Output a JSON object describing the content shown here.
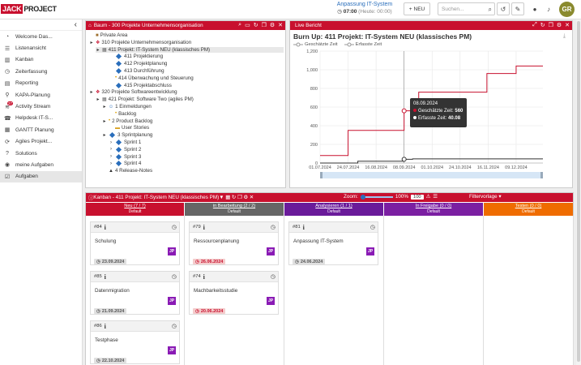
{
  "logo": {
    "part1": "JACK",
    "part2": "PROJECT"
  },
  "header": {
    "project_link": "Anpassung IT-System",
    "time_value": "07:00",
    "time_today": "(Heute: 00:00)",
    "new_label": "NEU",
    "search_placeholder": "Suchen...",
    "avatar_initials": "GR"
  },
  "sidebar": {
    "items": [
      {
        "label": "Welcome Das...",
        "icon": "dashboard-icon"
      },
      {
        "label": "Listenansicht",
        "icon": "list-icon"
      },
      {
        "label": "Kanban",
        "icon": "kanban-icon"
      },
      {
        "label": "Zeiterfassung",
        "icon": "clock-icon"
      },
      {
        "label": "Reporting",
        "icon": "chart-icon"
      },
      {
        "label": "KAPA-Planung",
        "icon": "pin-icon"
      },
      {
        "label": "Activity Stream",
        "icon": "stream-icon",
        "badge": "27"
      },
      {
        "label": "Helpdesk IT-S...",
        "icon": "helpdesk-icon"
      },
      {
        "label": "GANTT Planung",
        "icon": "gantt-icon"
      },
      {
        "label": "Agiles Projekt...",
        "icon": "agile-icon"
      },
      {
        "label": "Solutions",
        "icon": "question-icon"
      },
      {
        "label": "meine Aufgaben",
        "icon": "eye-icon"
      },
      {
        "label": "Aufgaben",
        "icon": "tasks-icon"
      }
    ]
  },
  "tree_panel": {
    "title": "Baum - 300 Projekte Unternehmensorganisation",
    "rows": [
      "Private Area",
      "310 Projekte Unternehmensorganisation",
      "411 Projekt: IT-System NEU (klassisches PM)",
      "411 Projektierung",
      "412 Projektplanung",
      "413 Durchführung",
      "414 Überwachung und Steuerung",
      "415 Projektabschluss",
      "320 Projekte Softwareentwicklung",
      "421 Projekt: Software Two (agiles PM)",
      "1 Einmeldungen",
      "Backlog",
      "2 Product Backlog",
      "User Stories",
      "3 Sprintplanung",
      "Sprint 1",
      "Sprint 2",
      "Sprint 3",
      "Sprint 4",
      "4 Release-Notes"
    ]
  },
  "report_panel": {
    "title": "Live Bericht"
  },
  "chart_data": {
    "type": "line",
    "title": "Burn Up: 411 Projekt: IT-System NEU (klassisches PM)",
    "xlabel": "",
    "ylabel": "",
    "x_ticks": [
      "01.07.2024",
      "24.07.2024",
      "16.08.2024",
      "08.09.2024",
      "01.10.2024",
      "24.10.2024",
      "16.11.2024",
      "09.12.2024"
    ],
    "y_ticks": [
      "0",
      "200",
      "400",
      "600",
      "800",
      "1,000",
      "1,200"
    ],
    "ylim": [
      0,
      1200
    ],
    "grid": true,
    "legend": "top-left",
    "series": [
      {
        "name": "Geschätzte Zeit",
        "color": "#c8102e",
        "x": [
          "01.07.2024",
          "20.07.2024",
          "24.07.2024",
          "16.08.2024",
          "08.09.2024",
          "20.09.2024",
          "05.10.2024",
          "15.11.2024",
          "09.12.2024",
          "31.12.2024"
        ],
        "values": [
          80,
          80,
          350,
          350,
          560,
          760,
          760,
          960,
          1040,
          1040
        ]
      },
      {
        "name": "Erfasste Zeit",
        "color": "#333333",
        "x": [
          "01.07.2024",
          "24.07.2024",
          "01.08.2024",
          "08.09.2024",
          "15.09.2024",
          "31.12.2024"
        ],
        "values": [
          0,
          0,
          20,
          40.08,
          45,
          45
        ]
      }
    ],
    "tooltip": {
      "date": "08.09.2024",
      "line1_label": "Geschätzte Zeit:",
      "line1_value": "560",
      "line2_label": "Erfasste Zeit:",
      "line2_value": "40.08"
    }
  },
  "kanban": {
    "title": "Kanban - 411 Projekt: IT-System NEU (klassisches PM)",
    "zoom_label": "Zoom:",
    "zoom_value": "100%",
    "zoom_input": "100",
    "filter_label": "Filtervorlage",
    "columns": [
      {
        "name": "Neu (7 / 7)",
        "sub": "Default",
        "color": "#c8102e"
      },
      {
        "name": "in Bearbeitung (2 / 2)",
        "sub": "Default",
        "color": "#666666"
      },
      {
        "name": "Analysieren (1 / 1)",
        "sub": "Default",
        "color": "#6a1b9a"
      },
      {
        "name": "In Freigabe (0 / 0)",
        "sub": "Default",
        "color": "#7b1fa2"
      },
      {
        "name": "Testen (0 / 0)",
        "sub": "Default",
        "color": "#ef6c00"
      }
    ],
    "cards": [
      {
        "id": "#84",
        "title": "Schulung",
        "date": "23.09.2024",
        "status": "gray",
        "col": 0,
        "row": 0
      },
      {
        "id": "#85",
        "title": "Datenmigration",
        "date": "21.09.2024",
        "status": "gray",
        "col": 0,
        "row": 1
      },
      {
        "id": "#86",
        "title": "Testphase",
        "date": "22.10.2024",
        "status": "gray",
        "col": 0,
        "row": 2
      },
      {
        "id": "#79",
        "title": "Ressourcenplanung",
        "date": "26.06.2024",
        "status": "red",
        "col": 1,
        "row": 0
      },
      {
        "id": "#74",
        "title": "Machbarkeitsstudie",
        "date": "20.06.2024",
        "status": "red",
        "col": 1,
        "row": 1
      },
      {
        "id": "#81",
        "title": "Anpassung IT-System",
        "date": "24.06.2024",
        "status": "gray",
        "col": 2,
        "row": 0
      }
    ],
    "assignee_badge": "JP"
  }
}
